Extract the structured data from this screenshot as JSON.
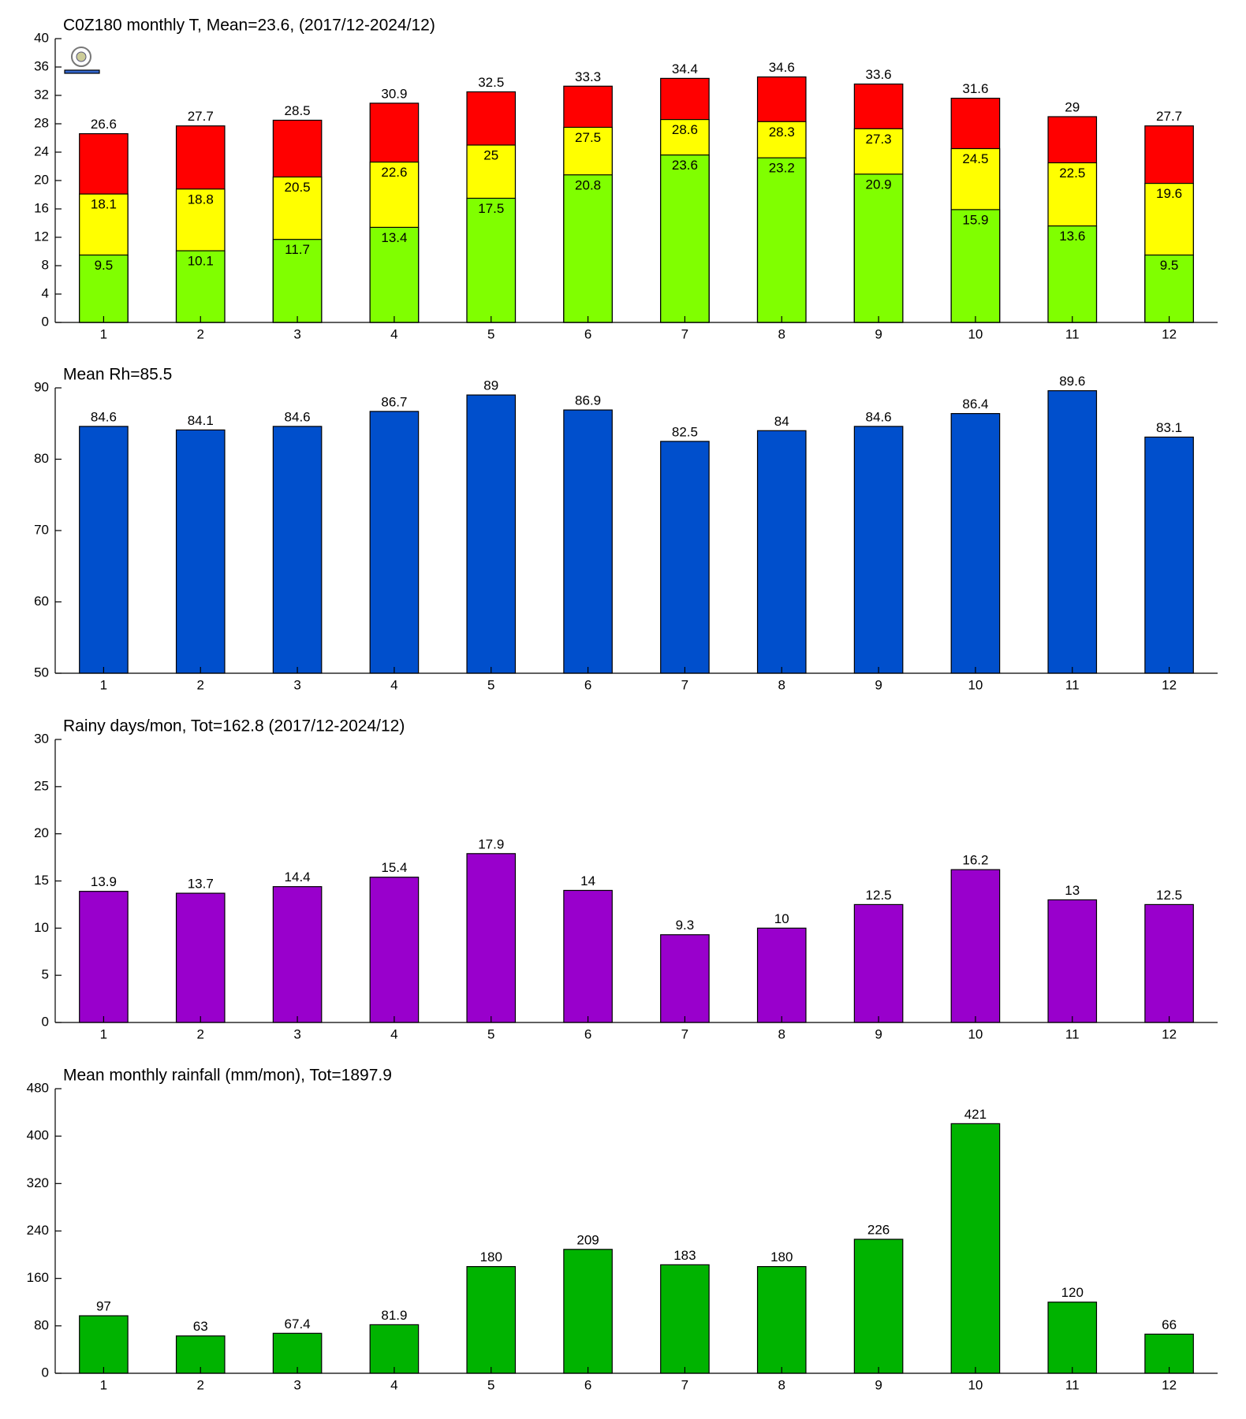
{
  "chart_data": [
    {
      "type": "bar",
      "title": "C0Z180 monthly T, Mean=23.6, (2017/12-2024/12)",
      "categories": [
        "1",
        "2",
        "3",
        "4",
        "5",
        "6",
        "7",
        "8",
        "9",
        "10",
        "11",
        "12"
      ],
      "series": [
        {
          "color": "#ff0000",
          "values": [
            26.6,
            27.7,
            28.5,
            30.9,
            32.5,
            33.3,
            34.4,
            34.6,
            33.6,
            31.6,
            29,
            27.7
          ]
        },
        {
          "color": "#ffff00",
          "values": [
            18.1,
            18.8,
            20.5,
            22.6,
            25,
            27.5,
            28.6,
            28.3,
            27.3,
            24.5,
            22.5,
            19.6
          ]
        },
        {
          "color": "#80ff00",
          "values": [
            9.5,
            10.1,
            11.7,
            13.4,
            17.5,
            20.8,
            23.6,
            23.2,
            20.9,
            15.9,
            13.6,
            9.5
          ]
        }
      ],
      "ylim": [
        0,
        40
      ],
      "yticks": [
        0,
        4,
        8,
        12,
        16,
        20,
        24,
        28,
        32,
        36,
        40
      ]
    },
    {
      "type": "bar",
      "title": "Mean Rh=85.5",
      "categories": [
        "1",
        "2",
        "3",
        "4",
        "5",
        "6",
        "7",
        "8",
        "9",
        "10",
        "11",
        "12"
      ],
      "series": [
        {
          "color": "#004fcc",
          "values": [
            84.6,
            84.1,
            84.6,
            86.7,
            89,
            86.9,
            82.5,
            84,
            84.6,
            86.4,
            89.6,
            83.1
          ]
        }
      ],
      "ylim": [
        50,
        90
      ],
      "yticks": [
        50,
        60,
        70,
        80,
        90
      ]
    },
    {
      "type": "bar",
      "title": "Rainy days/mon, Tot=162.8 (2017/12-2024/12)",
      "categories": [
        "1",
        "2",
        "3",
        "4",
        "5",
        "6",
        "7",
        "8",
        "9",
        "10",
        "11",
        "12"
      ],
      "series": [
        {
          "color": "#9900cc",
          "values": [
            13.9,
            13.7,
            14.4,
            15.4,
            17.9,
            14,
            9.3,
            10,
            12.5,
            16.2,
            13,
            12.5
          ]
        }
      ],
      "ylim": [
        0,
        30
      ],
      "yticks": [
        0,
        5,
        10,
        15,
        20,
        25,
        30
      ]
    },
    {
      "type": "bar",
      "title": "Mean monthly rainfall (mm/mon), Tot=1897.9",
      "categories": [
        "1",
        "2",
        "3",
        "4",
        "5",
        "6",
        "7",
        "8",
        "9",
        "10",
        "11",
        "12"
      ],
      "series": [
        {
          "color": "#00b300",
          "values": [
            97,
            63,
            67.4,
            81.9,
            180,
            209,
            183,
            180,
            226,
            421,
            120,
            66
          ]
        }
      ],
      "ylim": [
        0,
        480
      ],
      "yticks": [
        0,
        80,
        160,
        240,
        320,
        400,
        480
      ]
    }
  ]
}
